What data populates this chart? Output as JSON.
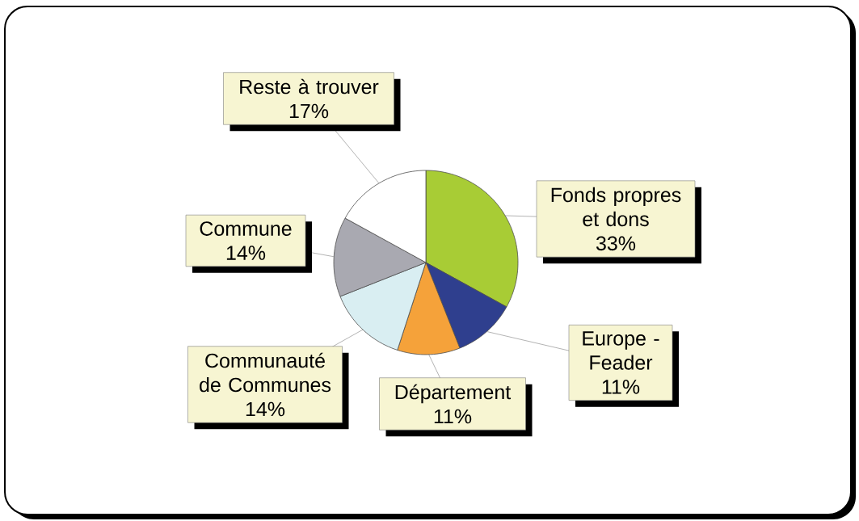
{
  "chart_data": {
    "type": "pie",
    "categories": [
      "Fonds propres et dons",
      "Europe - Feader",
      "Département",
      "Communauté de Communes",
      "Commune",
      "Reste à trouver"
    ],
    "values": [
      33,
      11,
      11,
      14,
      14,
      17
    ],
    "value_labels": [
      "33%",
      "11%",
      "11%",
      "14%",
      "14%",
      "17%"
    ],
    "colors": [
      "#a8cc35",
      "#2f3f8e",
      "#f5a23a",
      "#d9eef2",
      "#a9a9b1",
      "#ffffff"
    ]
  }
}
